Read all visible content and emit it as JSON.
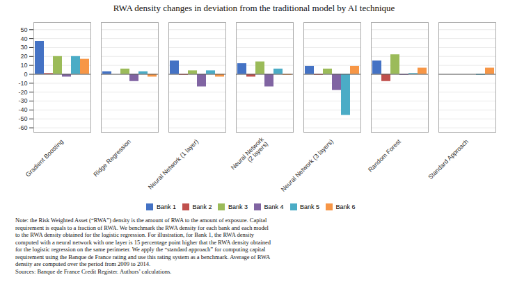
{
  "chart_data": {
    "type": "bar",
    "title": "RWA density changes in deviation from the traditional model by AI technique",
    "categories": [
      "Gradient Boosting",
      "Ridge Regression",
      "Neural Network (1 layer)",
      "Neural Network\n(2 layers)",
      "Neural Network (3 layers)",
      "Random Forest",
      "Standard Approach"
    ],
    "series": [
      {
        "name": "Bank 1",
        "color": "#4472C4",
        "values": [
          37,
          3,
          15,
          12,
          9,
          15,
          0
        ]
      },
      {
        "name": "Bank 2",
        "color": "#C0504D",
        "values": [
          1,
          0,
          -1,
          -3,
          -1,
          -8,
          0
        ]
      },
      {
        "name": "Bank 3",
        "color": "#9BBB59",
        "values": [
          20,
          6,
          4,
          14,
          6,
          22,
          0
        ]
      },
      {
        "name": "Bank 4",
        "color": "#8064A2",
        "values": [
          -3,
          -8,
          -14,
          -14,
          -18,
          -1,
          0
        ]
      },
      {
        "name": "Bank 5",
        "color": "#4BACC6",
        "values": [
          20,
          3,
          4,
          6,
          -46,
          1,
          -1
        ]
      },
      {
        "name": "Bank 6",
        "color": "#F79646",
        "values": [
          17,
          -3,
          -3,
          -1,
          9,
          7,
          7
        ]
      }
    ],
    "ylim": [
      -65,
      58
    ],
    "yticks": [
      -60,
      -50,
      -40,
      -30,
      -20,
      -10,
      0,
      10,
      20,
      30,
      40,
      50
    ],
    "grid": true,
    "legend": "lower center",
    "annotations": [
      "Note: the Risk Weighted Asset (“RWA”) density is the amount of RWA to the amount of exposure. Capital",
      "requirement is equals to a fraction of RWA. We benchmark the RWA density for each bank and each model",
      "to the RWA density obtained for the logistic regression. For illustration, for Bank 1, the RWA density",
      "computed with a neural network with one layer is 15 percentage point higher that the RWA density obtained",
      "for the logistic regression on the same perimeter. We apply the “standard approach” for computing capital",
      "requirement using the Banque de France rating and use this rating system as a benchmark. Average of RWA",
      "density are computed over the period from 2009 to 2014.",
      "Sources: Banque de France Credit Register. Authors’ calculations."
    ]
  }
}
